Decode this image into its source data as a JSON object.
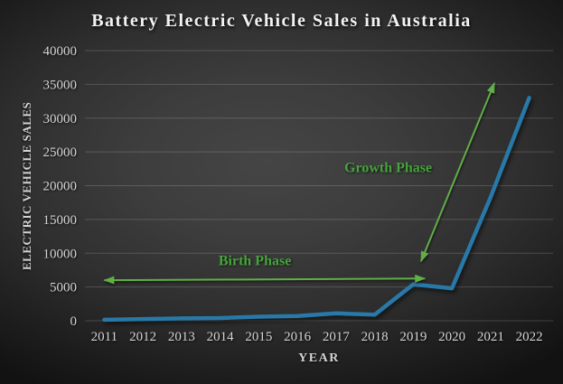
{
  "chart_data": {
    "type": "line",
    "title": "Battery Electric Vehicle Sales in Australia",
    "xlabel": "YEAR",
    "ylabel": "ELECTRIC VEHICLE SALES",
    "categories": [
      2011,
      2012,
      2013,
      2014,
      2015,
      2016,
      2017,
      2018,
      2019,
      2020,
      2021,
      2022
    ],
    "series": [
      {
        "name": "Battery Electric Vehicle Sales",
        "values": [
          150,
          250,
          350,
          400,
          600,
          700,
          1100,
          900,
          5400,
          4800,
          18300,
          33000
        ]
      }
    ],
    "ylim": [
      0,
      40000
    ],
    "yticks": [
      0,
      5000,
      10000,
      15000,
      20000,
      25000,
      30000,
      35000,
      40000
    ],
    "grid": true,
    "legend": "none",
    "annotations": [
      {
        "name": "birth-phase",
        "label": "Birth Phase",
        "label_x": 2014.9,
        "label_y": 8900,
        "x1": 2011.0,
        "y1": 6000,
        "x2": 2019.3,
        "y2": 6250
      },
      {
        "name": "growth-phase",
        "label": "Growth Phase",
        "label_x": 2018.35,
        "label_y": 22700,
        "x1": 2019.2,
        "y1": 8800,
        "x2": 2021.1,
        "y2": 35200
      }
    ],
    "colors": {
      "line": "#2878A8",
      "annotation_arrow": "#62AE48",
      "annotation_text": "#46A43C",
      "grid": "rgba(255,255,255,0.17)",
      "axis_text": "#D4D4D4",
      "title_text": "#F2F2F2"
    }
  }
}
